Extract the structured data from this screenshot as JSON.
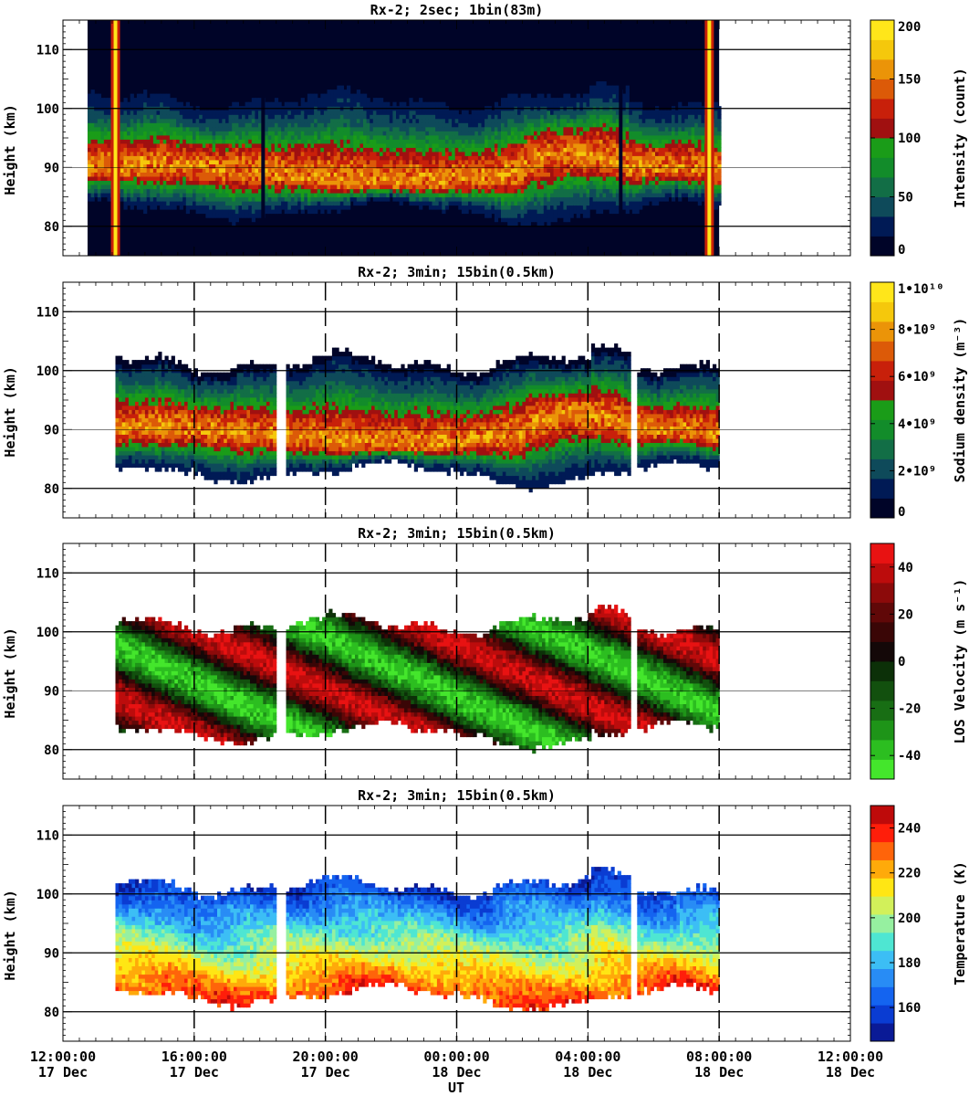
{
  "figure": {
    "xlabel": "UT",
    "x_ticks": [
      {
        "time": "12:00:00",
        "date": "17 Dec",
        "hours": 0
      },
      {
        "time": "16:00:00",
        "date": "17 Dec",
        "hours": 4
      },
      {
        "time": "20:00:00",
        "date": "17 Dec",
        "hours": 8
      },
      {
        "time": "00:00:00",
        "date": "18 Dec",
        "hours": 12
      },
      {
        "time": "04:00:00",
        "date": "18 Dec",
        "hours": 16
      },
      {
        "time": "08:00:00",
        "date": "18 Dec",
        "hours": 20
      },
      {
        "time": "12:00:00",
        "date": "18 Dec",
        "hours": 24
      }
    ]
  },
  "chart_data": [
    {
      "type": "heatmap",
      "title": "Rx-2;  2sec; 1bin(83m)",
      "ylabel": "Height (km)",
      "xlim_hours": [
        0,
        24
      ],
      "ylim": [
        75,
        115
      ],
      "y_ticks": [
        80,
        90,
        100,
        110
      ],
      "data_x_range_hours": [
        0.75,
        20.0
      ],
      "colorbar": {
        "label": "Intensity (count)",
        "range": [
          0,
          200
        ],
        "ticks": [
          {
            "v": 0,
            "label": "0"
          },
          {
            "v": 50,
            "label": "50"
          },
          {
            "v": 100,
            "label": "100"
          },
          {
            "v": 150,
            "label": "150"
          },
          {
            "v": 200,
            "label": "200"
          }
        ],
        "colors": [
          "#000428",
          "#001a55",
          "#0e4a5a",
          "#126e46",
          "#128c2a",
          "#1a9c18",
          "#a01010",
          "#c8200a",
          "#dc5a08",
          "#eb9408",
          "#f5c80c",
          "#ffe61a"
        ]
      }
    },
    {
      "type": "heatmap",
      "title": "Rx-2; 3min; 15bin(0.5km)",
      "ylabel": "Height (km)",
      "xlim_hours": [
        0,
        24
      ],
      "ylim": [
        75,
        115
      ],
      "y_ticks": [
        80,
        90,
        100,
        110
      ],
      "data_x_range_hours": [
        1.6,
        20.0
      ],
      "colorbar": {
        "label": "Sodium density (m⁻³)",
        "range": [
          0,
          10
        ],
        "ticks": [
          {
            "v": 0,
            "label": "0"
          },
          {
            "v": 2,
            "label": "2•10⁹"
          },
          {
            "v": 4,
            "label": "4•10⁹"
          },
          {
            "v": 6,
            "label": "6•10⁹"
          },
          {
            "v": 8,
            "label": "8•10⁹"
          },
          {
            "v": 10,
            "label": "1•10¹⁰"
          }
        ],
        "colors": [
          "#000428",
          "#001a55",
          "#0e4a5a",
          "#126e46",
          "#128c2a",
          "#1a9c18",
          "#a01010",
          "#c8200a",
          "#dc5a08",
          "#eb9408",
          "#f5c80c",
          "#ffe61a"
        ]
      }
    },
    {
      "type": "heatmap",
      "title": "Rx-2; 3min; 15bin(0.5km)",
      "ylabel": "Height (km)",
      "xlim_hours": [
        0,
        24
      ],
      "ylim": [
        75,
        115
      ],
      "y_ticks": [
        80,
        90,
        100,
        110
      ],
      "data_x_range_hours": [
        1.6,
        20.0
      ],
      "colorbar": {
        "label": "LOS Velocity (m s⁻¹)",
        "range": [
          -50,
          50
        ],
        "ticks": [
          {
            "v": -40,
            "label": "-40"
          },
          {
            "v": -20,
            "label": "-20"
          },
          {
            "v": 0,
            "label": "0"
          },
          {
            "v": 20,
            "label": "20"
          },
          {
            "v": 40,
            "label": "40"
          }
        ],
        "colors": [
          "#44e62c",
          "#2cbe20",
          "#1e9418",
          "#186e14",
          "#12500e",
          "#0c3008",
          "#140808",
          "#3a0606",
          "#600808",
          "#8c0a0a",
          "#bc0c0c",
          "#e81212"
        ]
      }
    },
    {
      "type": "heatmap",
      "title": "Rx-2; 3min; 15bin(0.5km)",
      "ylabel": "Height (km)",
      "xlim_hours": [
        0,
        24
      ],
      "ylim": [
        75,
        115
      ],
      "y_ticks": [
        80,
        90,
        100,
        110
      ],
      "data_x_range_hours": [
        1.6,
        20.0
      ],
      "colorbar": {
        "label": "Temperature (K)",
        "range": [
          145,
          250
        ],
        "ticks": [
          {
            "v": 160,
            "label": "160"
          },
          {
            "v": 180,
            "label": "180"
          },
          {
            "v": 200,
            "label": "200"
          },
          {
            "v": 220,
            "label": "220"
          },
          {
            "v": 240,
            "label": "240"
          }
        ],
        "colors": [
          "#0a1a96",
          "#0a3cd2",
          "#1464f0",
          "#288cf5",
          "#3cbef5",
          "#4ee6d2",
          "#96f0a0",
          "#d2f05a",
          "#ffe614",
          "#ffaa0a",
          "#ff640a",
          "#ff1e0a",
          "#be0a0a"
        ]
      }
    }
  ]
}
